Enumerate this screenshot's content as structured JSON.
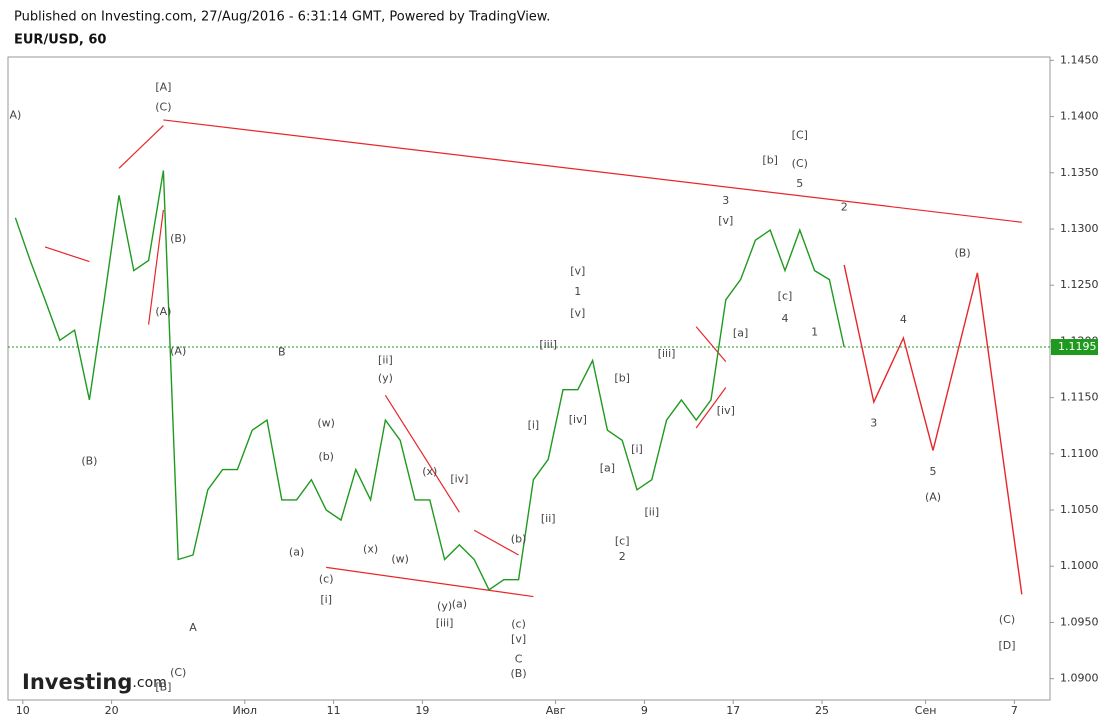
{
  "header": {
    "published": "Published on Investing.com, 27/Aug/2016 - 6:31:14 GMT, Powered by TradingView.",
    "symbol": "EUR/USD, 60",
    "logo": "Investing",
    "logo_suffix": ".com"
  },
  "chart_data": {
    "type": "line",
    "series": [
      {
        "color": "#1f9a1f",
        "x": [
          "2016-06-09",
          "2016-06-10",
          "2016-06-13",
          "2016-06-14",
          "2016-06-15",
          "2016-06-16",
          "2016-06-17",
          "2016-06-20",
          "2016-06-21",
          "2016-06-22",
          "2016-06-23",
          "2016-06-24",
          "2016-06-27",
          "2016-06-28",
          "2016-06-29",
          "2016-06-30",
          "2016-07-01",
          "2016-07-04",
          "2016-07-05",
          "2016-07-06",
          "2016-07-07",
          "2016-07-08",
          "2016-07-11",
          "2016-07-12",
          "2016-07-13",
          "2016-07-14",
          "2016-07-15",
          "2016-07-18",
          "2016-07-19",
          "2016-07-20",
          "2016-07-21",
          "2016-07-22",
          "2016-07-25",
          "2016-07-26",
          "2016-07-27",
          "2016-07-28",
          "2016-07-29",
          "2016-08-01",
          "2016-08-02",
          "2016-08-03",
          "2016-08-04",
          "2016-08-05",
          "2016-08-08",
          "2016-08-09",
          "2016-08-10",
          "2016-08-11",
          "2016-08-12",
          "2016-08-15",
          "2016-08-16",
          "2016-08-17",
          "2016-08-18",
          "2016-08-19",
          "2016-08-22",
          "2016-08-23",
          "2016-08-24",
          "2016-08-25",
          "2016-08-26"
        ],
        "values": [
          1.131,
          1.1272,
          1.1237,
          1.1201,
          1.121,
          1.1148,
          1.1237,
          1.133,
          1.1263,
          1.1272,
          1.1352,
          1.1006,
          1.101,
          1.1068,
          1.1086,
          1.1086,
          1.1121,
          1.113,
          1.1059,
          1.1059,
          1.1077,
          1.105,
          1.1041,
          1.1086,
          1.1059,
          1.113,
          1.1112,
          1.1059,
          1.1059,
          1.1006,
          1.1019,
          1.1006,
          1.0979,
          1.0988,
          1.0988,
          1.1077,
          1.1095,
          1.1157,
          1.1157,
          1.1183,
          1.1121,
          1.1112,
          1.1068,
          1.1077,
          1.113,
          1.1148,
          1.113,
          1.1148,
          1.1237,
          1.1255,
          1.129,
          1.1299,
          1.1263,
          1.1299,
          1.1263,
          1.1255,
          1.1195
        ]
      },
      {
        "color": "#e8262a",
        "x": [
          "2016-08-26",
          "2016-08-28",
          "2016-08-30",
          "2016-09-01",
          "2016-09-04",
          "2016-09-07"
        ],
        "values": [
          1.1268,
          1.1146,
          1.1203,
          1.1103,
          1.1261,
          1.0975
        ]
      }
    ],
    "last_price": 1.1195,
    "last_price_color": "#1f9a1f",
    "trendline_color": "#e8262a",
    "trendlines": [
      {
        "x": [
          "2016-06-23",
          "2016-09-07"
        ],
        "y": [
          1.1397,
          1.1306
        ]
      },
      {
        "x": [
          "2016-06-13",
          "2016-06-16"
        ],
        "y": [
          1.1284,
          1.1271
        ]
      },
      {
        "x": [
          "2016-06-20",
          "2016-06-23"
        ],
        "y": [
          1.1354,
          1.1392
        ]
      },
      {
        "x": [
          "2016-06-22",
          "2016-06-23"
        ],
        "y": [
          1.1215,
          1.1317
        ]
      },
      {
        "x": [
          "2016-07-08",
          "2016-07-28"
        ],
        "y": [
          1.0999,
          1.0973
        ]
      },
      {
        "x": [
          "2016-07-22",
          "2016-07-27"
        ],
        "y": [
          1.1032,
          1.101
        ]
      },
      {
        "x": [
          "2016-07-14",
          "2016-07-21"
        ],
        "y": [
          1.1152,
          1.1048
        ]
      },
      {
        "x": [
          "2016-08-12",
          "2016-08-16"
        ],
        "y": [
          1.1213,
          1.1182
        ]
      },
      {
        "x": [
          "2016-08-12",
          "2016-08-16"
        ],
        "y": [
          1.1123,
          1.1159
        ]
      }
    ],
    "annotations": [
      {
        "text": "A)",
        "x": "2016-06-09",
        "y": 1.1401
      },
      {
        "text": "[A]",
        "x": "2016-06-23",
        "y": 1.1426
      },
      {
        "text": "(C)",
        "x": "2016-06-23",
        "y": 1.1408
      },
      {
        "text": "(B)",
        "x": "2016-06-24",
        "y": 1.1291
      },
      {
        "text": "(A)",
        "x": "2016-06-23",
        "y": 1.1226
      },
      {
        "text": "(A)",
        "x": "2016-06-24",
        "y": 1.1191
      },
      {
        "text": "B",
        "x": "2016-07-05",
        "y": 1.119
      },
      {
        "text": "(B)",
        "x": "2016-06-16",
        "y": 1.1093
      },
      {
        "text": "A",
        "x": "2016-06-27",
        "y": 1.0945
      },
      {
        "text": "(C)",
        "x": "2016-06-24",
        "y": 1.0905
      },
      {
        "text": "[B]",
        "x": "2016-06-23",
        "y": 1.0892
      },
      {
        "text": "(w)",
        "x": "2016-07-08",
        "y": 1.1127
      },
      {
        "text": "(b)",
        "x": "2016-07-08",
        "y": 1.1097
      },
      {
        "text": "(a)",
        "x": "2016-07-06",
        "y": 1.1012
      },
      {
        "text": "(c)",
        "x": "2016-07-08",
        "y": 1.0988
      },
      {
        "text": "[i]",
        "x": "2016-07-08",
        "y": 1.097
      },
      {
        "text": "(x)",
        "x": "2016-07-13",
        "y": 1.1015
      },
      {
        "text": "(w)",
        "x": "2016-07-15",
        "y": 1.1006
      },
      {
        "text": "[ii]",
        "x": "2016-07-14",
        "y": 1.1183
      },
      {
        "text": "(y)",
        "x": "2016-07-14",
        "y": 1.1167
      },
      {
        "text": "(x)",
        "x": "2016-07-19",
        "y": 1.1084
      },
      {
        "text": "[iv]",
        "x": "2016-07-21",
        "y": 1.1077
      },
      {
        "text": "(y)",
        "x": "2016-07-20",
        "y": 1.0964
      },
      {
        "text": "(a)",
        "x": "2016-07-21",
        "y": 1.0966
      },
      {
        "text": "[iii]",
        "x": "2016-07-20",
        "y": 1.0949
      },
      {
        "text": "(b)",
        "x": "2016-07-27",
        "y": 1.1024
      },
      {
        "text": "(c)",
        "x": "2016-07-27",
        "y": 1.0948
      },
      {
        "text": "[v]",
        "x": "2016-07-27",
        "y": 1.0935
      },
      {
        "text": "C",
        "x": "2016-07-27",
        "y": 1.0917
      },
      {
        "text": "(B)",
        "x": "2016-07-27",
        "y": 1.0904
      },
      {
        "text": "[i]",
        "x": "2016-07-28",
        "y": 1.1125
      },
      {
        "text": "[ii]",
        "x": "2016-07-29",
        "y": 1.1042
      },
      {
        "text": "[iii]",
        "x": "2016-07-29",
        "y": 1.1197
      },
      {
        "text": "[iv]",
        "x": "2016-08-02",
        "y": 1.113
      },
      {
        "text": "[v]",
        "x": "2016-08-02",
        "y": 1.1262
      },
      {
        "text": "1",
        "x": "2016-08-02",
        "y": 1.1244
      },
      {
        "text": "[v]",
        "x": "2016-08-02",
        "y": 1.1225
      },
      {
        "text": "[b]",
        "x": "2016-08-05",
        "y": 1.1167
      },
      {
        "text": "[i]",
        "x": "2016-08-08",
        "y": 1.1104
      },
      {
        "text": "[a]",
        "x": "2016-08-04",
        "y": 1.1087
      },
      {
        "text": "[c]",
        "x": "2016-08-05",
        "y": 1.1022
      },
      {
        "text": "2",
        "x": "2016-08-05",
        "y": 1.1008
      },
      {
        "text": "[ii]",
        "x": "2016-08-09",
        "y": 1.1048
      },
      {
        "text": "[iii]",
        "x": "2016-08-10",
        "y": 1.1189
      },
      {
        "text": "[iv]",
        "x": "2016-08-16",
        "y": 1.1138
      },
      {
        "text": "3",
        "x": "2016-08-16",
        "y": 1.1325
      },
      {
        "text": "[v]",
        "x": "2016-08-16",
        "y": 1.1307
      },
      {
        "text": "[a]",
        "x": "2016-08-17",
        "y": 1.1207
      },
      {
        "text": "[b]",
        "x": "2016-08-19",
        "y": 1.1361
      },
      {
        "text": "[C]",
        "x": "2016-08-23",
        "y": 1.1383
      },
      {
        "text": "(C)",
        "x": "2016-08-23",
        "y": 1.1358
      },
      {
        "text": "5",
        "x": "2016-08-23",
        "y": 1.134
      },
      {
        "text": "[c]",
        "x": "2016-08-22",
        "y": 1.124
      },
      {
        "text": "4",
        "x": "2016-08-22",
        "y": 1.122
      },
      {
        "text": "1",
        "x": "2016-08-24",
        "y": 1.1208
      },
      {
        "text": "2",
        "x": "2016-08-26",
        "y": 1.1319
      },
      {
        "text": "4",
        "x": "2016-08-30",
        "y": 1.1219
      },
      {
        "text": "3",
        "x": "2016-08-28",
        "y": 1.1127
      },
      {
        "text": "5",
        "x": "2016-09-01",
        "y": 1.1084
      },
      {
        "text": "(A)",
        "x": "2016-09-01",
        "y": 1.1061
      },
      {
        "text": "(B)",
        "x": "2016-09-03",
        "y": 1.1278
      },
      {
        "text": "(C)",
        "x": "2016-09-06",
        "y": 1.0952
      },
      {
        "text": "[D]",
        "x": "2016-09-06",
        "y": 1.0929
      }
    ],
    "ylim": [
      1.0881,
      1.1453
    ],
    "yticks": [
      {
        "value": 1.09,
        "label": "1.0900"
      },
      {
        "value": 1.095,
        "label": "1.0950"
      },
      {
        "value": 1.1,
        "label": "1.1000"
      },
      {
        "value": 1.105,
        "label": "1.1050"
      },
      {
        "value": 1.11,
        "label": "1.1100"
      },
      {
        "value": 1.115,
        "label": "1.1150"
      },
      {
        "value": 1.12,
        "label": "1.1200"
      },
      {
        "value": 1.125,
        "label": "1.1250"
      },
      {
        "value": 1.13,
        "label": "1.1300"
      },
      {
        "value": 1.135,
        "label": "1.1350"
      },
      {
        "value": 1.14,
        "label": "1.1400"
      },
      {
        "value": 1.145,
        "label": "1.1450"
      }
    ],
    "xlim": [
      "2016-06-09",
      "2016-09-08"
    ],
    "xticks": [
      {
        "value": "2016-06-10",
        "label": "10"
      },
      {
        "value": "2016-06-20",
        "label": "20"
      },
      {
        "value": "2016-07-01",
        "label": "Июл"
      },
      {
        "value": "2016-07-11",
        "label": "11"
      },
      {
        "value": "2016-07-19",
        "label": "19"
      },
      {
        "value": "2016-08-01",
        "label": "Авг"
      },
      {
        "value": "2016-08-09",
        "label": "9"
      },
      {
        "value": "2016-08-17",
        "label": "17"
      },
      {
        "value": "2016-08-25",
        "label": "25"
      },
      {
        "value": "2016-09-01",
        "label": "Сен"
      },
      {
        "value": "2016-09-07",
        "label": "7"
      }
    ]
  }
}
